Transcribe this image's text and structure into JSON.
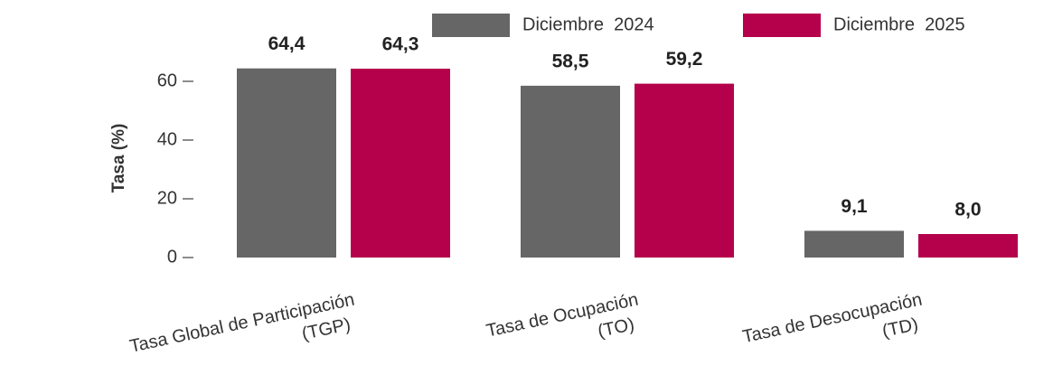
{
  "chart_data": {
    "type": "bar",
    "categories": [
      [
        "Tasa Global de Participación",
        "(TGP)"
      ],
      [
        "Tasa de Ocupación",
        "(TO)"
      ],
      [
        "Tasa de Desocupación",
        "(TD)"
      ]
    ],
    "series": [
      {
        "name": "Diciembre  2024",
        "color": "#666666",
        "values": [
          64.4,
          58.5,
          9.1
        ],
        "value_labels": [
          "64,4",
          "58,5",
          "9,1"
        ]
      },
      {
        "name": "Diciembre  2025",
        "color": "#b5004b",
        "values": [
          64.3,
          59.2,
          8.0
        ],
        "value_labels": [
          "64,3",
          "59,2",
          "8,0"
        ]
      }
    ],
    "ylabel": "Tasa (%)",
    "ylim": [
      0,
      68
    ],
    "yticks": [
      0,
      20,
      40,
      60
    ],
    "grid": false,
    "legend": "top"
  }
}
